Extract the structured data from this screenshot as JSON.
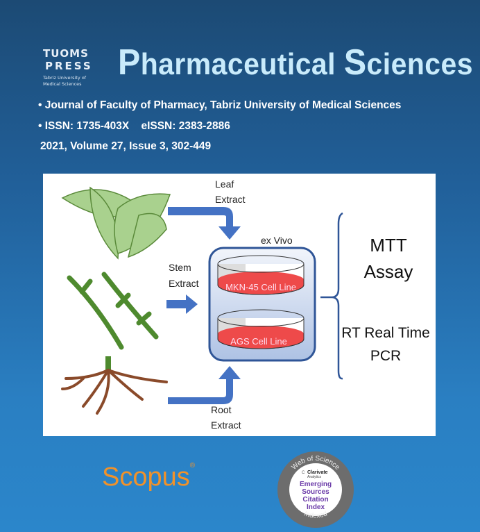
{
  "publisher": {
    "line1": "TUOMS",
    "line2": "PRESS",
    "subtitle": "Tabriz University of Medical Sciences"
  },
  "journal_title": {
    "initial_p": "P",
    "part1": "harmaceutical ",
    "initial_s": "S",
    "part2": "ciences"
  },
  "info": {
    "affiliation": "• Journal of Faculty of Pharmacy, Tabriz University of Medical Sciences",
    "issn": "• ISSN: 1735-403X    eISSN: 2383-2886",
    "issue": "2021, Volume 27, Issue 3, 302-449"
  },
  "diagram": {
    "leaf_label_1": "Leaf",
    "leaf_label_2": "Extract",
    "stem_label_1": "Stem",
    "stem_label_2": "Extract",
    "root_label_1": "Root",
    "root_label_2": "Extract",
    "ex_vivo": "ex Vivo",
    "dish1": "MKN-45 Cell Line",
    "dish2": "AGS Cell Line",
    "assay1_line1": "MTT",
    "assay1_line2": "Assay",
    "assay2_line1": "RT Real Time",
    "assay2_line2": "PCR",
    "colors": {
      "arrow": "#4472c4",
      "medium": "#ee4a4a",
      "leaf": "#a9d18e",
      "stem": "#4e8a2e",
      "root": "#8a4a2a"
    }
  },
  "indexing": {
    "scopus": "Scopus",
    "scopus_mark": "®",
    "wos_top": "Web of Science",
    "clarivate": "Clarivate",
    "analytics": "Analytics",
    "esci1": "Emerging",
    "esci2": "Sources",
    "esci3": "Citation",
    "esci4": "Index",
    "wos_bottom": "Indexed"
  }
}
